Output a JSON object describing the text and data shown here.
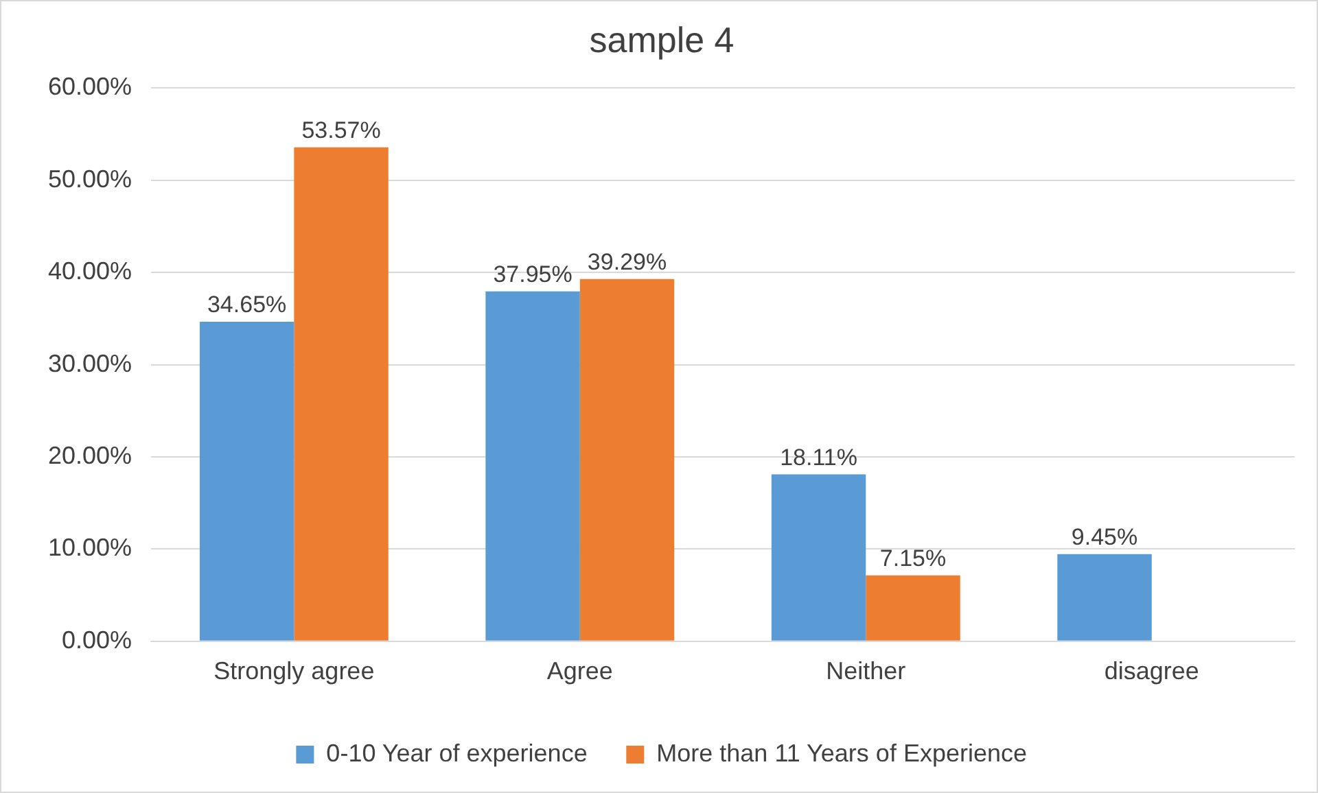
{
  "chart_data": {
    "type": "bar",
    "title": "sample 4",
    "categories": [
      "Strongly agree",
      "Agree",
      "Neither",
      "disagree"
    ],
    "series": [
      {
        "name": "0-10 Year of experience",
        "color": "#5b9bd5",
        "values": [
          34.65,
          37.95,
          18.11,
          9.45
        ],
        "value_labels": [
          "34.65%",
          "37.95%",
          "18.11%",
          "9.45%"
        ]
      },
      {
        "name": "More than 11 Years of Experience",
        "color": "#ed7d31",
        "values": [
          53.57,
          39.29,
          7.15,
          null
        ],
        "value_labels": [
          "53.57%",
          "39.29%",
          "7.15%",
          null
        ]
      }
    ],
    "ylim": [
      0,
      60
    ],
    "yticks": [
      {
        "value": 0,
        "label": "0.00%"
      },
      {
        "value": 10,
        "label": "10.00%"
      },
      {
        "value": 20,
        "label": "20.00%"
      },
      {
        "value": 30,
        "label": "30.00%"
      },
      {
        "value": 40,
        "label": "40.00%"
      },
      {
        "value": 50,
        "label": "50.00%"
      },
      {
        "value": 60,
        "label": "60.00%"
      }
    ],
    "grid": "y",
    "legend": "bottom"
  }
}
